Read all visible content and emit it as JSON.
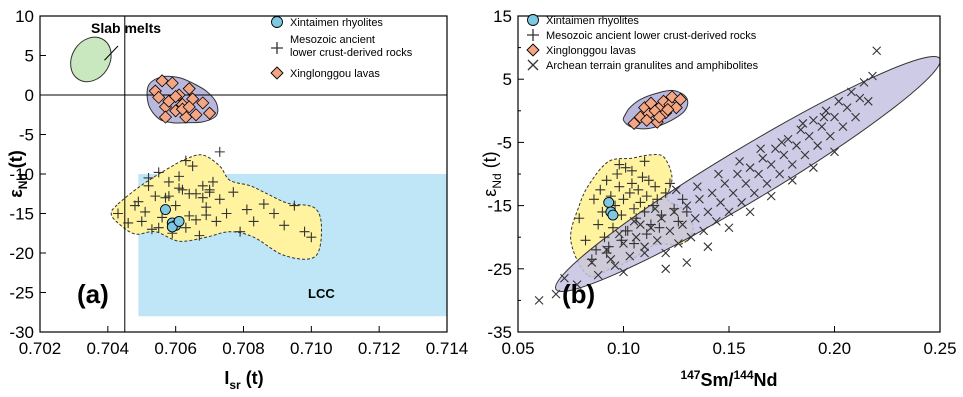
{
  "colors": {
    "rhyolite_fill": "#7ec8e3",
    "lava_fill": "#f4a582",
    "yellow_field": "#fff3a0",
    "purple_field": "#b9b7dc",
    "green_field": "#c9e8c0",
    "lcc_fill": "#bfe6f6",
    "archean_band": "#c5c2e2"
  },
  "chart_data": [
    {
      "type": "scatter",
      "panel_label": "(a)",
      "xlabel": "I",
      "xlabel_sub": "sr",
      "xlabel_suffix": " (t)",
      "ylabel": "ε",
      "ylabel_sub": "Nd",
      "ylabel_suffix": " (t)",
      "xlim": [
        0.702,
        0.714
      ],
      "ylim": [
        -30,
        10
      ],
      "xticks": [
        "0.702",
        "0.704",
        "0.706",
        "0.708",
        "0.710",
        "0.712",
        "0.714"
      ],
      "yticks": [
        "10",
        "5",
        "0",
        "-5",
        "-10",
        "-15",
        "-20",
        "-25",
        "-30"
      ],
      "legend_position": "top-right",
      "annotations": [
        {
          "text": "Slab melts",
          "x": 0.7045,
          "y": 6.8
        },
        {
          "text": "LCC",
          "x": 0.7105,
          "y": -25.8
        }
      ],
      "reference_lines": {
        "x": 0.7045,
        "y": 0
      },
      "fields": {
        "lcc_rect": {
          "x": [
            0.7049,
            0.714
          ],
          "y": [
            -28,
            -10
          ]
        },
        "slab_ellipse": {
          "cx": 0.7035,
          "cy": 4.5,
          "rx": 0.0006,
          "ry": 4.6,
          "angle": -58
        },
        "yellow": [
          [
            0.7043,
            -13.8
          ],
          [
            0.705,
            -11.4
          ],
          [
            0.7057,
            -9.5
          ],
          [
            0.7063,
            -8.1
          ],
          [
            0.7068,
            -7.6
          ],
          [
            0.7073,
            -9.0
          ],
          [
            0.7076,
            -10.8
          ],
          [
            0.7082,
            -11.5
          ],
          [
            0.7087,
            -12.5
          ],
          [
            0.7093,
            -13.7
          ],
          [
            0.7101,
            -14.3
          ],
          [
            0.7103,
            -17.0
          ],
          [
            0.7101,
            -20.5
          ],
          [
            0.7092,
            -20.3
          ],
          [
            0.7083,
            -18.0
          ],
          [
            0.7076,
            -17.3
          ],
          [
            0.7069,
            -18.0
          ],
          [
            0.7061,
            -18.5
          ],
          [
            0.7054,
            -17.3
          ],
          [
            0.7048,
            -17.6
          ],
          [
            0.7043,
            -16.2
          ],
          [
            0.7041,
            -15.0
          ]
        ],
        "purple": [
          [
            0.7052,
            1.2
          ],
          [
            0.7056,
            2.3
          ],
          [
            0.7061,
            2.2
          ],
          [
            0.7065,
            1.5
          ],
          [
            0.7069,
            0.5
          ],
          [
            0.7072,
            -1.0
          ],
          [
            0.7072,
            -2.6
          ],
          [
            0.7068,
            -3.4
          ],
          [
            0.7063,
            -3.5
          ],
          [
            0.7059,
            -3.5
          ],
          [
            0.7055,
            -3.0
          ],
          [
            0.7052,
            -1.2
          ]
        ]
      },
      "series": [
        {
          "name": "Xintaimen rhyolites",
          "marker": "circle",
          "x": [
            0.7057,
            0.7059,
            0.706,
            0.7059,
            0.7061
          ],
          "y": [
            -14.5,
            -16.2,
            -16.5,
            -16.7,
            -16.0
          ]
        },
        {
          "name": "Mesozoic ancient lower crust-derived rocks",
          "marker": "plus",
          "x": [
            0.7043,
            0.7046,
            0.7049,
            0.7051,
            0.7052,
            0.7053,
            0.7054,
            0.7055,
            0.7056,
            0.7057,
            0.7058,
            0.7059,
            0.706,
            0.7061,
            0.7062,
            0.7063,
            0.7064,
            0.7065,
            0.7066,
            0.7067,
            0.7068,
            0.7069,
            0.707,
            0.7071,
            0.7072,
            0.7073,
            0.7075,
            0.7077,
            0.7079,
            0.7081,
            0.7083,
            0.7086,
            0.7089,
            0.7092,
            0.7095,
            0.7098,
            0.71,
            0.7052,
            0.7058,
            0.7063,
            0.7068,
            0.7073,
            0.7055,
            0.7061,
            0.7066,
            0.707,
            0.705,
            0.7048,
            0.7064,
            0.7069
          ],
          "y": [
            -15.0,
            -16.2,
            -13.5,
            -14.8,
            -11.5,
            -17.0,
            -12.8,
            -9.8,
            -15.5,
            -13.0,
            -11.0,
            -17.5,
            -14.0,
            -10.3,
            -12.0,
            -16.8,
            -15.3,
            -9.0,
            -12.5,
            -17.8,
            -11.5,
            -14.2,
            -12.0,
            -11.0,
            -16.0,
            -13.2,
            -15.0,
            -12.3,
            -17.3,
            -14.5,
            -16.0,
            -13.8,
            -15.0,
            -16.5,
            -14.0,
            -17.3,
            -18.0,
            -10.5,
            -12.8,
            -8.3,
            -13.0,
            -7.2,
            -16.8,
            -11.8,
            -15.8,
            -12.3,
            -16.0,
            -14.0,
            -12.5,
            -15.2
          ]
        },
        {
          "name": "Xinglonggou lavas",
          "marker": "diamond",
          "x": [
            0.7054,
            0.7056,
            0.7057,
            0.7058,
            0.7059,
            0.706,
            0.7061,
            0.7062,
            0.7063,
            0.7064,
            0.7065,
            0.7066,
            0.7068,
            0.707,
            0.7057,
            0.706,
            0.7062,
            0.7055,
            0.7064
          ],
          "y": [
            0.5,
            1.8,
            -1.5,
            -0.8,
            1.5,
            -2.0,
            0.0,
            -1.2,
            -2.8,
            0.8,
            -0.5,
            -2.5,
            -1.0,
            -2.3,
            -2.8,
            -0.2,
            -1.8,
            -0.3,
            -1.5
          ]
        }
      ]
    },
    {
      "type": "scatter",
      "panel_label": "(b)",
      "xlabel_sup1": "147",
      "xlabel_mid": "Sm/",
      "xlabel_sup2": "144",
      "xlabel_end": "Nd",
      "ylabel": "ε",
      "ylabel_sub": "Nd",
      "ylabel_suffix": " (t)",
      "xlim": [
        0.05,
        0.25
      ],
      "ylim": [
        -35,
        15
      ],
      "xticks": [
        "0.05",
        "0.10",
        "0.15",
        "0.20",
        "0.25"
      ],
      "yticks": [
        "15",
        "5",
        "-5",
        "-15",
        "-25",
        "-35"
      ],
      "yminor": [
        10,
        0,
        -10,
        -20,
        -30
      ],
      "legend_position": "top-left",
      "fields": {
        "yellow": [
          [
            0.083,
            -26.0
          ],
          [
            0.075,
            -20.5
          ],
          [
            0.079,
            -15.0
          ],
          [
            0.084,
            -11.5
          ],
          [
            0.093,
            -8.0
          ],
          [
            0.104,
            -7.5
          ],
          [
            0.112,
            -7.0
          ],
          [
            0.119,
            -7.3
          ],
          [
            0.123,
            -10.5
          ],
          [
            0.121,
            -14.0
          ],
          [
            0.128,
            -15.5
          ],
          [
            0.133,
            -18.5
          ],
          [
            0.128,
            -21.0
          ],
          [
            0.115,
            -21.2
          ],
          [
            0.104,
            -23.5
          ],
          [
            0.094,
            -25.0
          ]
        ],
        "purple": [
          [
            0.101,
            -0.5
          ],
          [
            0.103,
            0.5
          ],
          [
            0.108,
            1.8
          ],
          [
            0.116,
            2.8
          ],
          [
            0.124,
            3.2
          ],
          [
            0.13,
            2.0
          ],
          [
            0.129,
            0.0
          ],
          [
            0.121,
            -1.8
          ],
          [
            0.112,
            -2.8
          ],
          [
            0.104,
            -2.6
          ],
          [
            0.1,
            -1.5
          ]
        ],
        "archean_ellipse": {
          "cx": 0.159,
          "cy": -10.0,
          "rx": 0.111,
          "ry": 3.9,
          "angle": -26
        }
      },
      "series": [
        {
          "name": "Xintaimen rhyolites",
          "marker": "circle",
          "x": [
            0.093,
            0.094,
            0.095
          ],
          "y": [
            -14.5,
            -16.0,
            -16.5
          ]
        },
        {
          "name": "Mesozoic ancient lower crust-derived rocks",
          "marker": "plus",
          "x": [
            0.079,
            0.082,
            0.085,
            0.086,
            0.088,
            0.089,
            0.09,
            0.091,
            0.092,
            0.094,
            0.095,
            0.096,
            0.097,
            0.098,
            0.099,
            0.1,
            0.101,
            0.102,
            0.103,
            0.104,
            0.105,
            0.106,
            0.107,
            0.108,
            0.109,
            0.11,
            0.111,
            0.112,
            0.113,
            0.114,
            0.115,
            0.116,
            0.118,
            0.12,
            0.122,
            0.124,
            0.126,
            0.128,
            0.13,
            0.087,
            0.093,
            0.099,
            0.105,
            0.111,
            0.117,
            0.098,
            0.104,
            0.11,
            0.092,
            0.101
          ],
          "y": [
            -17.0,
            -20.5,
            -23.5,
            -14.0,
            -18.0,
            -12.5,
            -16.0,
            -20.0,
            -11.0,
            -13.5,
            -18.5,
            -15.0,
            -10.0,
            -12.0,
            -16.5,
            -14.0,
            -9.0,
            -19.0,
            -13.0,
            -11.5,
            -15.5,
            -17.0,
            -12.5,
            -14.5,
            -10.5,
            -16.0,
            -13.5,
            -11.0,
            -18.0,
            -15.0,
            -12.0,
            -14.0,
            -16.5,
            -13.0,
            -11.5,
            -15.5,
            -17.5,
            -14.0,
            -16.0,
            -22.0,
            -21.5,
            -20.5,
            -21.0,
            -19.5,
            -18.5,
            -8.5,
            -9.5,
            -8.0,
            -22.5,
            -19.0
          ]
        },
        {
          "name": "Xinglonggou lavas",
          "marker": "diamond",
          "x": [
            0.105,
            0.108,
            0.11,
            0.112,
            0.113,
            0.115,
            0.116,
            0.118,
            0.119,
            0.12,
            0.122,
            0.123,
            0.125,
            0.127,
            0.111,
            0.117,
            0.121
          ],
          "y": [
            -2.0,
            -1.0,
            0.5,
            -0.5,
            1.2,
            0.0,
            -1.8,
            0.8,
            1.5,
            -0.3,
            1.0,
            2.2,
            0.5,
            1.8,
            -1.5,
            -1.0,
            0.2
          ]
        },
        {
          "name": "Archean terrain granulites and amphibolites",
          "marker": "x",
          "x": [
            0.06,
            0.068,
            0.072,
            0.078,
            0.085,
            0.088,
            0.092,
            0.096,
            0.1,
            0.103,
            0.106,
            0.11,
            0.113,
            0.116,
            0.118,
            0.12,
            0.122,
            0.124,
            0.126,
            0.128,
            0.13,
            0.132,
            0.134,
            0.136,
            0.138,
            0.14,
            0.142,
            0.144,
            0.146,
            0.148,
            0.15,
            0.152,
            0.154,
            0.156,
            0.158,
            0.16,
            0.162,
            0.164,
            0.166,
            0.168,
            0.17,
            0.172,
            0.174,
            0.176,
            0.178,
            0.18,
            0.182,
            0.184,
            0.186,
            0.188,
            0.19,
            0.192,
            0.194,
            0.196,
            0.198,
            0.2,
            0.202,
            0.204,
            0.206,
            0.208,
            0.21,
            0.212,
            0.214,
            0.216,
            0.218,
            0.22,
            0.105,
            0.115,
            0.125,
            0.135,
            0.145,
            0.155,
            0.165,
            0.175,
            0.185,
            0.195,
            0.14,
            0.15,
            0.16,
            0.17,
            0.18,
            0.19,
            0.2,
            0.13,
            0.12,
            0.11,
            0.1,
            0.094,
            0.098,
            0.108
          ],
          "y": [
            -30.0,
            -29.0,
            -26.5,
            -27.5,
            -24.0,
            -26.0,
            -22.0,
            -24.5,
            -21.0,
            -23.0,
            -20.0,
            -21.5,
            -18.5,
            -20.5,
            -17.0,
            -22.5,
            -19.0,
            -16.0,
            -21.0,
            -18.0,
            -15.0,
            -20.0,
            -17.0,
            -14.0,
            -19.0,
            -16.0,
            -13.0,
            -17.5,
            -14.5,
            -11.5,
            -16.0,
            -13.0,
            -10.0,
            -14.5,
            -11.5,
            -9.0,
            -13.0,
            -10.0,
            -7.5,
            -11.5,
            -8.5,
            -6.0,
            -10.0,
            -7.0,
            -4.5,
            -8.5,
            -5.5,
            -3.0,
            -7.0,
            -4.0,
            -1.5,
            -5.5,
            -2.5,
            0.0,
            -4.0,
            -1.0,
            1.5,
            -2.5,
            0.5,
            3.0,
            -1.0,
            2.0,
            4.5,
            1.5,
            5.5,
            9.5,
            -17.5,
            -15.5,
            -12.5,
            -12.0,
            -10.0,
            -8.0,
            -6.0,
            -5.0,
            -2.0,
            -1.0,
            -21.5,
            -18.5,
            -16.0,
            -13.5,
            -11.0,
            -9.0,
            -6.5,
            -24.0,
            -25.0,
            -22.5,
            -25.5,
            -23.5,
            -19.5,
            -18.0
          ]
        }
      ]
    }
  ]
}
